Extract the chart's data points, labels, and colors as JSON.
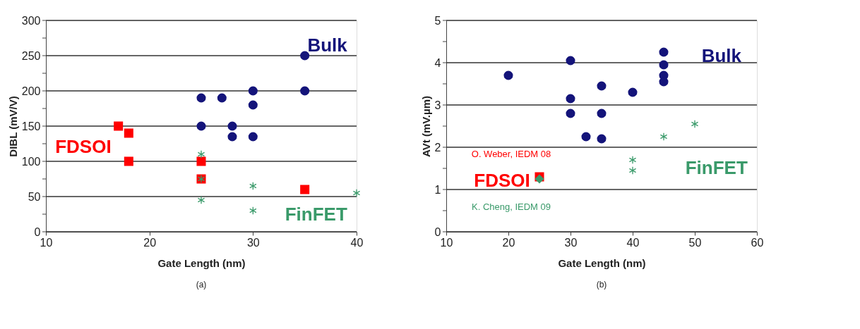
{
  "chart_data": [
    {
      "type": "scatter",
      "xlabel": "Gate Length (nm)",
      "ylabel": "DIBL (mV/V)",
      "xlim": [
        10,
        40
      ],
      "xticks": [
        10,
        20,
        30,
        40
      ],
      "ylim": [
        0,
        300
      ],
      "yticks": [
        0,
        {
          "value": 25,
          "label": null
        },
        50,
        {
          "value": 75,
          "label": null
        },
        100,
        {
          "value": 125,
          "label": null
        },
        150,
        {
          "value": 175,
          "label": null
        },
        200,
        {
          "value": 225,
          "label": null
        },
        250,
        {
          "value": 275,
          "label": null
        },
        300
      ],
      "grid": "y",
      "legend": false,
      "annotations": [
        "(a)"
      ],
      "series": [
        {
          "name": "Bulk",
          "color": "#14147a",
          "marker": "circle",
          "x": [
            25,
            27,
            30,
            35,
            35,
            30,
            25,
            28,
            28,
            30
          ],
          "values": [
            190,
            190,
            200,
            250,
            200,
            180,
            150,
            150,
            135,
            135
          ]
        },
        {
          "name": "FDSOI",
          "color": "#ff0000",
          "marker": "square",
          "x": [
            17,
            18,
            18,
            25,
            25,
            35
          ],
          "values": [
            150,
            140,
            100,
            100,
            75,
            60
          ]
        },
        {
          "name": "FinFET",
          "color": "#3a9a6a",
          "marker": "cross",
          "x": [
            25,
            25,
            25,
            30,
            30,
            40
          ],
          "values": [
            110,
            75,
            45,
            65,
            30,
            55
          ]
        }
      ]
    },
    {
      "type": "scatter",
      "xlabel": "Gate Length (nm)",
      "ylabel": "AVt (mV.µm)",
      "xlim": [
        10,
        60
      ],
      "xticks": [
        10,
        20,
        30,
        40,
        50,
        60
      ],
      "ylim": [
        0,
        5
      ],
      "yticks": [
        0,
        {
          "value": 0.5,
          "label": null
        },
        1,
        {
          "value": 1.5,
          "label": null
        },
        2,
        {
          "value": 2.5,
          "label": null
        },
        3,
        {
          "value": 3.5,
          "label": null
        },
        4,
        {
          "value": 4.5,
          "label": null
        },
        5
      ],
      "grid": "y",
      "legend": false,
      "annotations": [
        {
          "text": "O. Weber, IEDM 08",
          "x": 25,
          "y": 1.3
        },
        {
          "text": "K. Cheng, IEDM 09",
          "x": 25,
          "y": 1.25
        },
        "(b)"
      ],
      "series": [
        {
          "name": "Bulk",
          "color": "#14147a",
          "marker": "circle",
          "x": [
            20,
            30,
            30,
            30,
            32.5,
            35,
            35,
            35,
            40,
            45,
            45,
            45,
            45
          ],
          "values": [
            3.7,
            4.05,
            3.15,
            2.8,
            2.25,
            3.45,
            2.8,
            2.2,
            3.3,
            4.25,
            3.95,
            3.7,
            3.55
          ]
        },
        {
          "name": "FDSOI",
          "color": "#ff0000",
          "marker": "square",
          "x": [
            25
          ],
          "values": [
            1.3
          ]
        },
        {
          "name": "FinFET",
          "color": "#3a9a6a",
          "marker": "cross",
          "x": [
            40,
            40,
            45,
            50
          ],
          "values": [
            1.7,
            1.45,
            2.25,
            2.55
          ]
        },
        {
          "color": "#3a9a6a",
          "marker": "diamond",
          "x": [
            25
          ],
          "values": [
            1.25
          ]
        }
      ]
    }
  ]
}
